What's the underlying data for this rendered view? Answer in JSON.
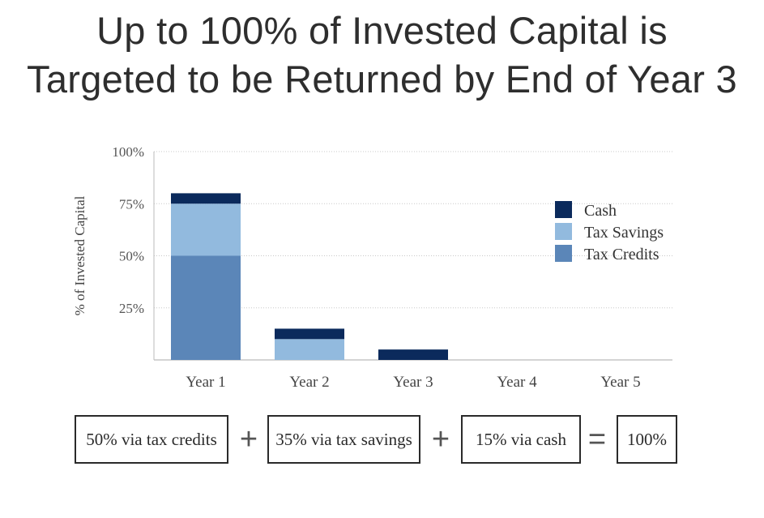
{
  "title_lines": [
    "Up to 100% of Invested Capital is",
    "Targeted to be Returned by End of Year 3"
  ],
  "chart_data": {
    "type": "bar",
    "stacked": true,
    "categories": [
      "Year 1",
      "Year 2",
      "Year 3",
      "Year 4",
      "Year 5"
    ],
    "series": [
      {
        "name": "Tax Credits",
        "color": "#5b86b8",
        "values": [
          50,
          0,
          0,
          0,
          0
        ]
      },
      {
        "name": "Tax Savings",
        "color": "#92bade",
        "values": [
          25,
          10,
          0,
          0,
          0
        ]
      },
      {
        "name": "Cash",
        "color": "#0b2a5c",
        "values": [
          5,
          5,
          5,
          0,
          0
        ]
      }
    ],
    "legend_order": [
      "Cash",
      "Tax Savings",
      "Tax Credits"
    ],
    "ylabel": "% of Invested Capital",
    "ylim": [
      0,
      100
    ],
    "yticks": [
      {
        "value": 25,
        "label": "25%"
      },
      {
        "value": 50,
        "label": "50%"
      },
      {
        "value": 75,
        "label": "75%"
      },
      {
        "value": 100,
        "label": "100%"
      }
    ],
    "grid": true,
    "legend_position": "right"
  },
  "equation": {
    "terms": [
      "50% via tax credits",
      "35% via tax savings",
      "15% via cash"
    ],
    "operators": [
      "+",
      "+",
      "="
    ],
    "result": "100%"
  }
}
